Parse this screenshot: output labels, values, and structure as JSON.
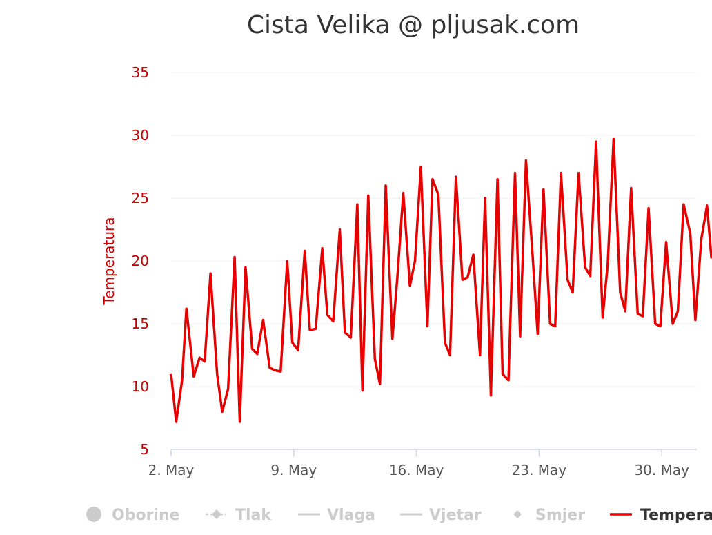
{
  "colors": {
    "series": "#e60000",
    "axis_text": "#cc0000",
    "legend_inactive": "#cccccc",
    "legend_active": "#333333",
    "grid": "#f0f0f0",
    "axis_line": "#ccd6eb"
  },
  "chart_data": {
    "type": "line",
    "title": "Cista Velika @ pljusak.com",
    "ylabel": "Temperatura",
    "xlabel": "",
    "ylim": [
      5,
      35
    ],
    "yticks": [
      5,
      10,
      15,
      20,
      25,
      30,
      35
    ],
    "xlim": [
      "2025-05-02",
      "2025-06-01"
    ],
    "xtick_dates": [
      "2025-05-02",
      "2025-05-09",
      "2025-05-16",
      "2025-05-23",
      "2025-05-30"
    ],
    "xtick_labels": [
      "2. May",
      "9. May",
      "16. May",
      "23. May",
      "30. May"
    ],
    "grid": true,
    "legend_position": "bottom",
    "legend": [
      {
        "name": "Oborine",
        "symbol": "circle",
        "active": false
      },
      {
        "name": "Tlak",
        "symbol": "dash-diamond",
        "active": false
      },
      {
        "name": "Vlaga",
        "symbol": "line",
        "active": false
      },
      {
        "name": "Vjetar",
        "symbol": "line",
        "active": false
      },
      {
        "name": "Smjer",
        "symbol": "diamond",
        "active": false
      },
      {
        "name": "Tempera",
        "symbol": "line",
        "active": true
      }
    ],
    "series": [
      {
        "name": "Tempera",
        "x": [
          "2025-05-02 00:00",
          "2025-05-02 07:00",
          "2025-05-02 15:00",
          "2025-05-02 21:00",
          "2025-05-03 07:00",
          "2025-05-03 15:00",
          "2025-05-03 22:00",
          "2025-05-04 06:00",
          "2025-05-04 15:00",
          "2025-05-04 22:00",
          "2025-05-05 06:00",
          "2025-05-05 15:00",
          "2025-05-05 22:00",
          "2025-05-06 06:00",
          "2025-05-06 15:00",
          "2025-05-06 22:00",
          "2025-05-07 06:00",
          "2025-05-07 15:00",
          "2025-05-07 22:00",
          "2025-05-08 06:00",
          "2025-05-08 15:00",
          "2025-05-08 22:00",
          "2025-05-09 06:00",
          "2025-05-09 15:00",
          "2025-05-09 22:00",
          "2025-05-10 06:00",
          "2025-05-10 15:00",
          "2025-05-10 22:00",
          "2025-05-11 06:00",
          "2025-05-11 15:00",
          "2025-05-11 22:00",
          "2025-05-12 06:00",
          "2025-05-12 15:00",
          "2025-05-12 22:00",
          "2025-05-13 06:00",
          "2025-05-13 15:00",
          "2025-05-13 22:00",
          "2025-05-14 06:00",
          "2025-05-14 15:00",
          "2025-05-14 22:00",
          "2025-05-15 06:00",
          "2025-05-15 15:00",
          "2025-05-15 22:00",
          "2025-05-16 06:00",
          "2025-05-16 15:00",
          "2025-05-16 22:00",
          "2025-05-17 06:00",
          "2025-05-17 15:00",
          "2025-05-17 22:00",
          "2025-05-18 06:00",
          "2025-05-18 15:00",
          "2025-05-18 22:00",
          "2025-05-19 06:00",
          "2025-05-19 15:00",
          "2025-05-19 22:00",
          "2025-05-20 06:00",
          "2025-05-20 15:00",
          "2025-05-20 22:00",
          "2025-05-21 06:00",
          "2025-05-21 15:00",
          "2025-05-21 22:00",
          "2025-05-22 06:00",
          "2025-05-22 15:00",
          "2025-05-22 22:00",
          "2025-05-23 06:00",
          "2025-05-23 15:00",
          "2025-05-23 22:00",
          "2025-05-24 06:00",
          "2025-05-24 15:00",
          "2025-05-24 22:00",
          "2025-05-25 06:00",
          "2025-05-25 15:00",
          "2025-05-25 22:00",
          "2025-05-26 06:00",
          "2025-05-26 15:00",
          "2025-05-26 22:00",
          "2025-05-27 06:00",
          "2025-05-27 15:00",
          "2025-05-27 22:00",
          "2025-05-28 06:00",
          "2025-05-28 15:00",
          "2025-05-28 22:00",
          "2025-05-29 06:00",
          "2025-05-29 15:00",
          "2025-05-29 22:00",
          "2025-05-30 06:00",
          "2025-05-30 15:00",
          "2025-05-30 22:00",
          "2025-05-31 06:00",
          "2025-05-31 15:00",
          "2025-05-31 22:00",
          "2025-06-01 06:00",
          "2025-06-01 14:00",
          "2025-06-01 20:00"
        ],
        "values": [
          11.0,
          7.2,
          10.5,
          16.2,
          10.8,
          12.3,
          12.0,
          19.0,
          11.0,
          8.0,
          9.8,
          20.3,
          7.2,
          19.5,
          13.0,
          12.6,
          15.3,
          11.5,
          11.3,
          11.2,
          20.0,
          13.5,
          12.9,
          20.8,
          14.5,
          14.6,
          21.0,
          15.7,
          15.2,
          22.5,
          14.3,
          13.9,
          24.5,
          9.7,
          25.2,
          12.2,
          10.2,
          26.0,
          13.8,
          18.8,
          25.4,
          18.0,
          20.0,
          27.5,
          14.8,
          26.5,
          25.3,
          13.5,
          12.5,
          26.7,
          18.5,
          18.7,
          20.5,
          12.5,
          25.0,
          9.3,
          26.5,
          11.0,
          10.5,
          27.0,
          14.0,
          28.0,
          20.5,
          14.2,
          25.7,
          15.0,
          14.8,
          27.0,
          18.5,
          17.5,
          27.0,
          19.5,
          18.8,
          29.5,
          15.5,
          19.8,
          29.7,
          17.5,
          16.0,
          25.8,
          15.8,
          15.6,
          24.2,
          15.0,
          14.8,
          21.5,
          15.0,
          16.0,
          24.5,
          22.2,
          15.3,
          21.7,
          24.4,
          20.2
        ]
      }
    ]
  }
}
